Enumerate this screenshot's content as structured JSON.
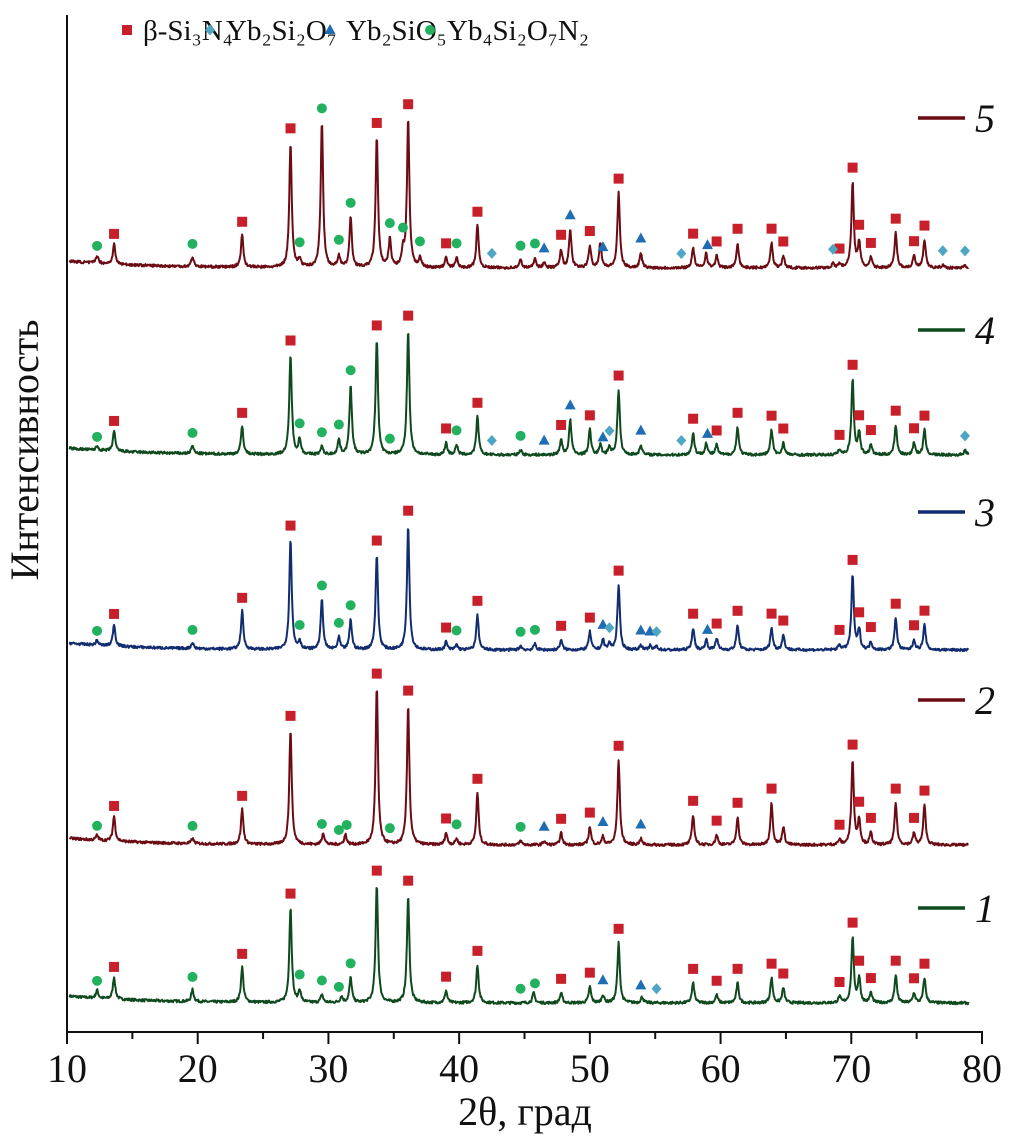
{
  "chart_data": {
    "type": "line",
    "title": "",
    "xlabel": "2θ, град",
    "ylabel": "Интенсивность",
    "xlim": [
      10,
      80
    ],
    "ylim": [
      0,
      1015
    ],
    "xticks": [
      10,
      20,
      30,
      40,
      50,
      60,
      70,
      80
    ],
    "xtick_labels": [
      "10",
      "20",
      "30",
      "40",
      "50",
      "60",
      "70",
      "80"
    ],
    "grid": false,
    "legend_position": "top",
    "phases": [
      {
        "key": "sq",
        "name": "β-Si₃N₄",
        "shape": "square",
        "color": "#c8202a"
      },
      {
        "key": "di",
        "name": "Yb₂Si₂O₇",
        "shape": "diamond",
        "color": "#4ea6c4"
      },
      {
        "key": "tr",
        "name": "Yb₂SiO₅",
        "shape": "triangle",
        "color": "#1f6db3"
      },
      {
        "key": "ci",
        "name": "Yb₄Si₂O₇N₂",
        "shape": "circle",
        "color": "#22b25f"
      }
    ],
    "series": [
      {
        "name": "1",
        "label": "1",
        "color": "#0f4a1e",
        "offset": 27,
        "peaks": [
          [
            12.3,
            8
          ],
          [
            13.6,
            22
          ],
          [
            19.6,
            12
          ],
          [
            23.4,
            35
          ],
          [
            27.1,
            95
          ],
          [
            27.8,
            12
          ],
          [
            29.5,
            8
          ],
          [
            31.0,
            6
          ],
          [
            31.7,
            25
          ],
          [
            33.7,
            118
          ],
          [
            36.1,
            108
          ],
          [
            39.0,
            12
          ],
          [
            41.4,
            38
          ],
          [
            45.7,
            10
          ],
          [
            47.8,
            10
          ],
          [
            50.0,
            16
          ],
          [
            51.0,
            8
          ],
          [
            52.2,
            60
          ],
          [
            54.0,
            6
          ],
          [
            57.9,
            20
          ],
          [
            59.7,
            8
          ],
          [
            61.3,
            20
          ],
          [
            63.9,
            25
          ],
          [
            64.8,
            15
          ],
          [
            69.1,
            6
          ],
          [
            70.1,
            65
          ],
          [
            70.6,
            25
          ],
          [
            71.5,
            10
          ],
          [
            73.4,
            28
          ],
          [
            74.8,
            10
          ],
          [
            75.6,
            25
          ]
        ],
        "markers": {
          "sq": [
            13.6,
            23.4,
            27.1,
            33.7,
            36.1,
            39.0,
            41.4,
            47.8,
            50.0,
            52.2,
            57.9,
            59.7,
            61.3,
            63.9,
            64.8,
            69.1,
            70.1,
            70.6,
            71.5,
            73.4,
            74.8,
            75.6
          ],
          "ci": [
            12.3,
            19.6,
            27.8,
            29.5,
            30.8,
            31.7,
            44.7,
            45.8
          ],
          "tr": [
            51.0,
            53.9
          ],
          "di": [
            55.1
          ]
        }
      },
      {
        "name": "2",
        "label": "2",
        "color": "#6b0c14",
        "offset": 185,
        "peaks": [
          [
            12.3,
            5
          ],
          [
            13.6,
            25
          ],
          [
            19.6,
            5
          ],
          [
            23.4,
            35
          ],
          [
            27.1,
            115
          ],
          [
            29.6,
            12
          ],
          [
            31.3,
            10
          ],
          [
            33.7,
            157
          ],
          [
            36.1,
            140
          ],
          [
            39.0,
            12
          ],
          [
            39.8,
            6
          ],
          [
            41.4,
            52
          ],
          [
            44.7,
            4
          ],
          [
            46.5,
            4
          ],
          [
            47.8,
            12
          ],
          [
            50.0,
            18
          ],
          [
            51.0,
            8
          ],
          [
            52.2,
            85
          ],
          [
            53.9,
            6
          ],
          [
            57.9,
            30
          ],
          [
            59.7,
            10
          ],
          [
            61.3,
            28
          ],
          [
            63.9,
            42
          ],
          [
            64.8,
            18
          ],
          [
            69.1,
            5
          ],
          [
            70.1,
            85
          ],
          [
            70.6,
            25
          ],
          [
            71.5,
            12
          ],
          [
            73.4,
            42
          ],
          [
            74.8,
            12
          ],
          [
            75.6,
            40
          ]
        ],
        "markers": {
          "sq": [
            13.6,
            23.4,
            27.1,
            33.7,
            36.1,
            39.0,
            41.4,
            47.8,
            50.0,
            52.2,
            57.9,
            59.7,
            61.3,
            63.9,
            69.1,
            70.1,
            70.6,
            71.5,
            73.4,
            74.8,
            75.6
          ],
          "ci": [
            12.3,
            19.6,
            29.5,
            30.8,
            31.4,
            34.7,
            39.8,
            44.7
          ],
          "tr": [
            46.5,
            51.0,
            53.9
          ],
          "di": []
        }
      },
      {
        "name": "3",
        "label": "3",
        "color": "#122c70",
        "offset": 380,
        "peaks": [
          [
            12.3,
            5
          ],
          [
            13.6,
            22
          ],
          [
            19.6,
            6
          ],
          [
            23.4,
            38
          ],
          [
            27.1,
            110
          ],
          [
            27.8,
            8
          ],
          [
            29.5,
            50
          ],
          [
            30.8,
            12
          ],
          [
            31.7,
            30
          ],
          [
            33.7,
            95
          ],
          [
            36.1,
            125
          ],
          [
            39.0,
            8
          ],
          [
            39.8,
            5
          ],
          [
            41.4,
            35
          ],
          [
            44.7,
            4
          ],
          [
            45.8,
            6
          ],
          [
            47.8,
            10
          ],
          [
            50.0,
            18
          ],
          [
            51.0,
            10
          ],
          [
            51.5,
            6
          ],
          [
            52.2,
            65
          ],
          [
            53.9,
            5
          ],
          [
            54.6,
            4
          ],
          [
            55.1,
            4
          ],
          [
            57.9,
            22
          ],
          [
            58.9,
            10
          ],
          [
            59.7,
            12
          ],
          [
            61.3,
            25
          ],
          [
            63.9,
            22
          ],
          [
            64.8,
            15
          ],
          [
            69.1,
            5
          ],
          [
            70.1,
            75
          ],
          [
            70.6,
            20
          ],
          [
            71.5,
            8
          ],
          [
            73.4,
            32
          ],
          [
            74.8,
            10
          ],
          [
            75.6,
            25
          ]
        ],
        "markers": {
          "sq": [
            13.6,
            23.4,
            27.1,
            33.7,
            36.1,
            39.0,
            41.4,
            47.8,
            50.0,
            52.2,
            57.9,
            59.7,
            61.3,
            63.9,
            64.8,
            69.1,
            70.1,
            70.6,
            71.5,
            73.4,
            74.8,
            75.6
          ],
          "ci": [
            12.3,
            19.6,
            27.8,
            29.5,
            30.8,
            31.7,
            39.8,
            44.7,
            45.8
          ],
          "tr": [
            51.0,
            53.9,
            54.6,
            59.0
          ],
          "di": [
            51.5,
            55.1
          ]
        }
      },
      {
        "name": "4",
        "label": "4",
        "color": "#0f4a1e",
        "offset": 575,
        "peaks": [
          [
            12.3,
            4
          ],
          [
            13.6,
            20
          ],
          [
            19.6,
            8
          ],
          [
            23.4,
            28
          ],
          [
            27.1,
            100
          ],
          [
            27.8,
            15
          ],
          [
            29.5,
            8
          ],
          [
            30.8,
            15
          ],
          [
            31.7,
            70
          ],
          [
            33.7,
            115
          ],
          [
            36.1,
            125
          ],
          [
            39.0,
            12
          ],
          [
            39.8,
            10
          ],
          [
            41.4,
            38
          ],
          [
            44.7,
            5
          ],
          [
            47.8,
            15
          ],
          [
            48.5,
            35
          ],
          [
            50.0,
            25
          ],
          [
            50.8,
            10
          ],
          [
            51.5,
            8
          ],
          [
            52.2,
            65
          ],
          [
            53.9,
            10
          ],
          [
            57.9,
            22
          ],
          [
            58.9,
            12
          ],
          [
            59.7,
            10
          ],
          [
            61.3,
            28
          ],
          [
            63.9,
            25
          ],
          [
            64.8,
            12
          ],
          [
            69.1,
            5
          ],
          [
            70.1,
            75
          ],
          [
            70.6,
            22
          ],
          [
            71.5,
            10
          ],
          [
            73.4,
            30
          ],
          [
            74.8,
            12
          ],
          [
            75.6,
            25
          ],
          [
            78.7,
            5
          ]
        ],
        "markers": {
          "sq": [
            13.6,
            23.4,
            27.1,
            33.7,
            36.1,
            39.0,
            41.4,
            47.8,
            50.0,
            52.2,
            57.9,
            59.7,
            61.3,
            63.9,
            64.8,
            69.1,
            70.1,
            70.6,
            71.5,
            73.4,
            74.8,
            75.6
          ],
          "ci": [
            12.3,
            19.6,
            27.8,
            29.5,
            30.8,
            31.7,
            34.7,
            39.8,
            44.7
          ],
          "tr": [
            46.5,
            48.5,
            51.0,
            53.9,
            59.0
          ],
          "di": [
            42.5,
            51.5,
            57.0,
            78.7
          ]
        }
      },
      {
        "name": "5",
        "label": "5",
        "color": "#6b0c14",
        "offset": 762,
        "peaks": [
          [
            12.3,
            8
          ],
          [
            13.6,
            20
          ],
          [
            19.6,
            10
          ],
          [
            23.4,
            32
          ],
          [
            27.1,
            125
          ],
          [
            27.8,
            8
          ],
          [
            29.5,
            145
          ],
          [
            30.8,
            12
          ],
          [
            31.7,
            50
          ],
          [
            33.7,
            130
          ],
          [
            34.7,
            28
          ],
          [
            35.7,
            15
          ],
          [
            36.1,
            148
          ],
          [
            37.0,
            10
          ],
          [
            39.0,
            10
          ],
          [
            39.8,
            10
          ],
          [
            41.4,
            42
          ],
          [
            44.7,
            8
          ],
          [
            45.8,
            10
          ],
          [
            46.5,
            5
          ],
          [
            47.8,
            18
          ],
          [
            48.5,
            38
          ],
          [
            50.0,
            22
          ],
          [
            50.8,
            25
          ],
          [
            52.2,
            75
          ],
          [
            53.9,
            15
          ],
          [
            57.9,
            20
          ],
          [
            58.9,
            15
          ],
          [
            59.7,
            12
          ],
          [
            61.3,
            25
          ],
          [
            63.9,
            25
          ],
          [
            64.8,
            12
          ],
          [
            68.6,
            4
          ],
          [
            69.1,
            4
          ],
          [
            70.1,
            85
          ],
          [
            70.6,
            25
          ],
          [
            71.5,
            10
          ],
          [
            73.4,
            35
          ],
          [
            74.8,
            12
          ],
          [
            75.6,
            28
          ],
          [
            77.0,
            3
          ],
          [
            78.7,
            3
          ]
        ],
        "markers": {
          "sq": [
            13.6,
            23.4,
            27.1,
            33.7,
            36.1,
            39.0,
            41.4,
            47.8,
            50.0,
            52.2,
            57.9,
            59.7,
            61.3,
            63.9,
            64.8,
            69.1,
            70.1,
            70.6,
            71.5,
            73.4,
            74.8,
            75.6
          ],
          "ci": [
            12.3,
            19.6,
            27.8,
            29.5,
            30.8,
            31.7,
            34.7,
            35.7,
            37.0,
            39.8,
            44.7,
            45.8
          ],
          "tr": [
            46.5,
            48.5,
            51.0,
            53.9,
            59.0
          ],
          "di": [
            42.5,
            57.0,
            68.6,
            77.0,
            78.7
          ]
        }
      }
    ]
  }
}
